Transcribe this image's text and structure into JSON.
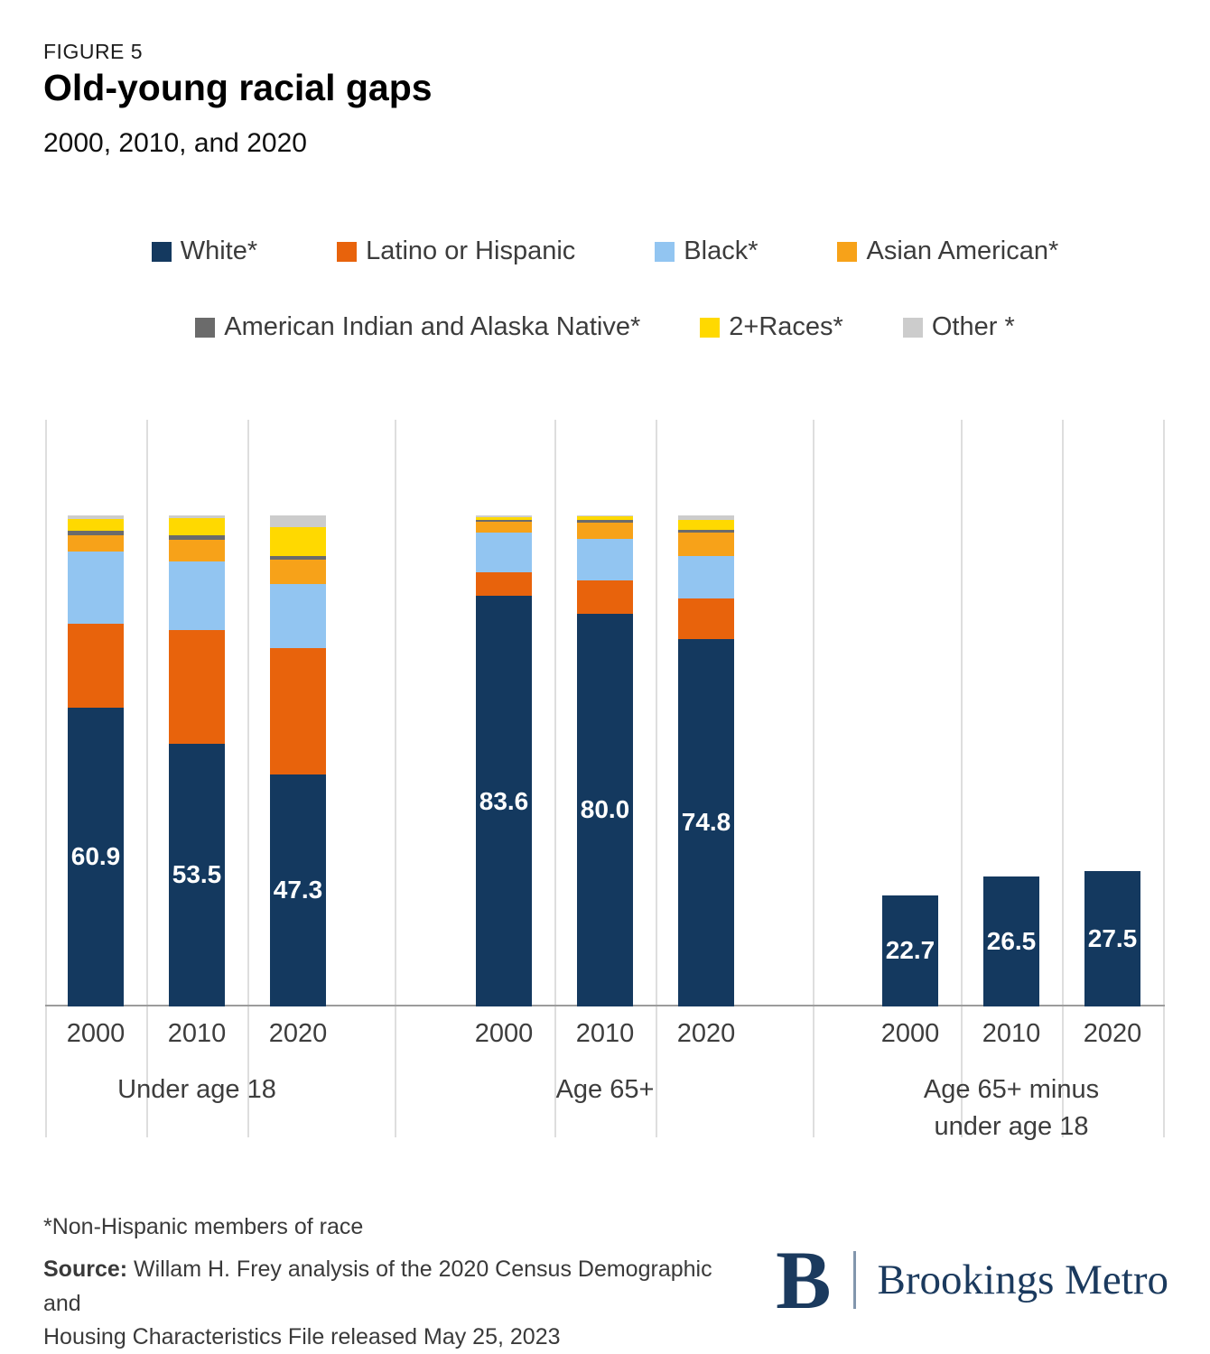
{
  "figure": {
    "label": "FIGURE 5",
    "title": "Old-young racial gaps",
    "subtitle": "2000, 2010, and 2020"
  },
  "legend": {
    "row1": [
      {
        "label": "White*",
        "color": "#14395f"
      },
      {
        "label": "Latino or Hispanic",
        "color": "#e8630c"
      },
      {
        "label": "Black*",
        "color": "#92c5f1"
      },
      {
        "label": "Asian American*",
        "color": "#f7a219"
      }
    ],
    "row2": [
      {
        "label": "American Indian and Alaska Native*",
        "color": "#6b6b6b"
      },
      {
        "label": "2+Races*",
        "color": "#ffd900"
      },
      {
        "label": "Other *",
        "color": "#cccccc"
      }
    ]
  },
  "chart_data": {
    "type": "bar",
    "stacked": true,
    "value_unit": "percent of age group population",
    "ylim": [
      0,
      100
    ],
    "grid": "vertical-panel-lines",
    "legend_position": "top",
    "series": [
      "White*",
      "Latino or Hispanic",
      "Black*",
      "Asian American*",
      "American Indian and Alaska Native*",
      "2+Races*",
      "Other *"
    ],
    "colors": [
      "#14395f",
      "#e8630c",
      "#92c5f1",
      "#f7a219",
      "#6b6b6b",
      "#ffd900",
      "#cccccc"
    ],
    "groups": [
      {
        "label": "Under age 18",
        "bars": [
          {
            "year": "2000",
            "label": "60.9",
            "segments": [
              60.9,
              17.1,
              14.6,
              3.3,
              0.9,
              2.5,
              0.7
            ]
          },
          {
            "year": "2010",
            "label": "53.5",
            "segments": [
              53.5,
              23.1,
              14.0,
              4.4,
              0.9,
              3.6,
              0.5
            ]
          },
          {
            "year": "2020",
            "label": "47.3",
            "segments": [
              47.3,
              25.7,
              13.0,
              4.9,
              0.8,
              6.0,
              2.3
            ]
          }
        ]
      },
      {
        "label": "Age 65+",
        "bars": [
          {
            "year": "2000",
            "label": "83.6",
            "segments": [
              83.6,
              4.9,
              8.0,
              2.2,
              0.4,
              0.6,
              0.3
            ]
          },
          {
            "year": "2010",
            "label": "80.0",
            "segments": [
              80.0,
              6.8,
              8.5,
              3.3,
              0.5,
              0.7,
              0.2
            ]
          },
          {
            "year": "2020",
            "label": "74.8",
            "segments": [
              74.8,
              8.2,
              8.8,
              4.7,
              0.6,
              2.0,
              0.9
            ]
          }
        ]
      },
      {
        "label": "Age 65+ minus\nunder age 18",
        "bars": [
          {
            "year": "2000",
            "label": "22.7",
            "segments": [
              22.7
            ]
          },
          {
            "year": "2010",
            "label": "26.5",
            "segments": [
              26.5
            ]
          },
          {
            "year": "2020",
            "label": "27.5",
            "segments": [
              27.5
            ]
          }
        ]
      }
    ]
  },
  "footnote": "*Non-Hispanic members of race",
  "source": {
    "label": "Source:",
    "text1": " Willam H. Frey analysis of the 2020 Census Demographic and",
    "text2": "Housing Characteristics File released May 25, 2023"
  },
  "logo": {
    "mark": "B",
    "text": "Brookings Metro"
  }
}
